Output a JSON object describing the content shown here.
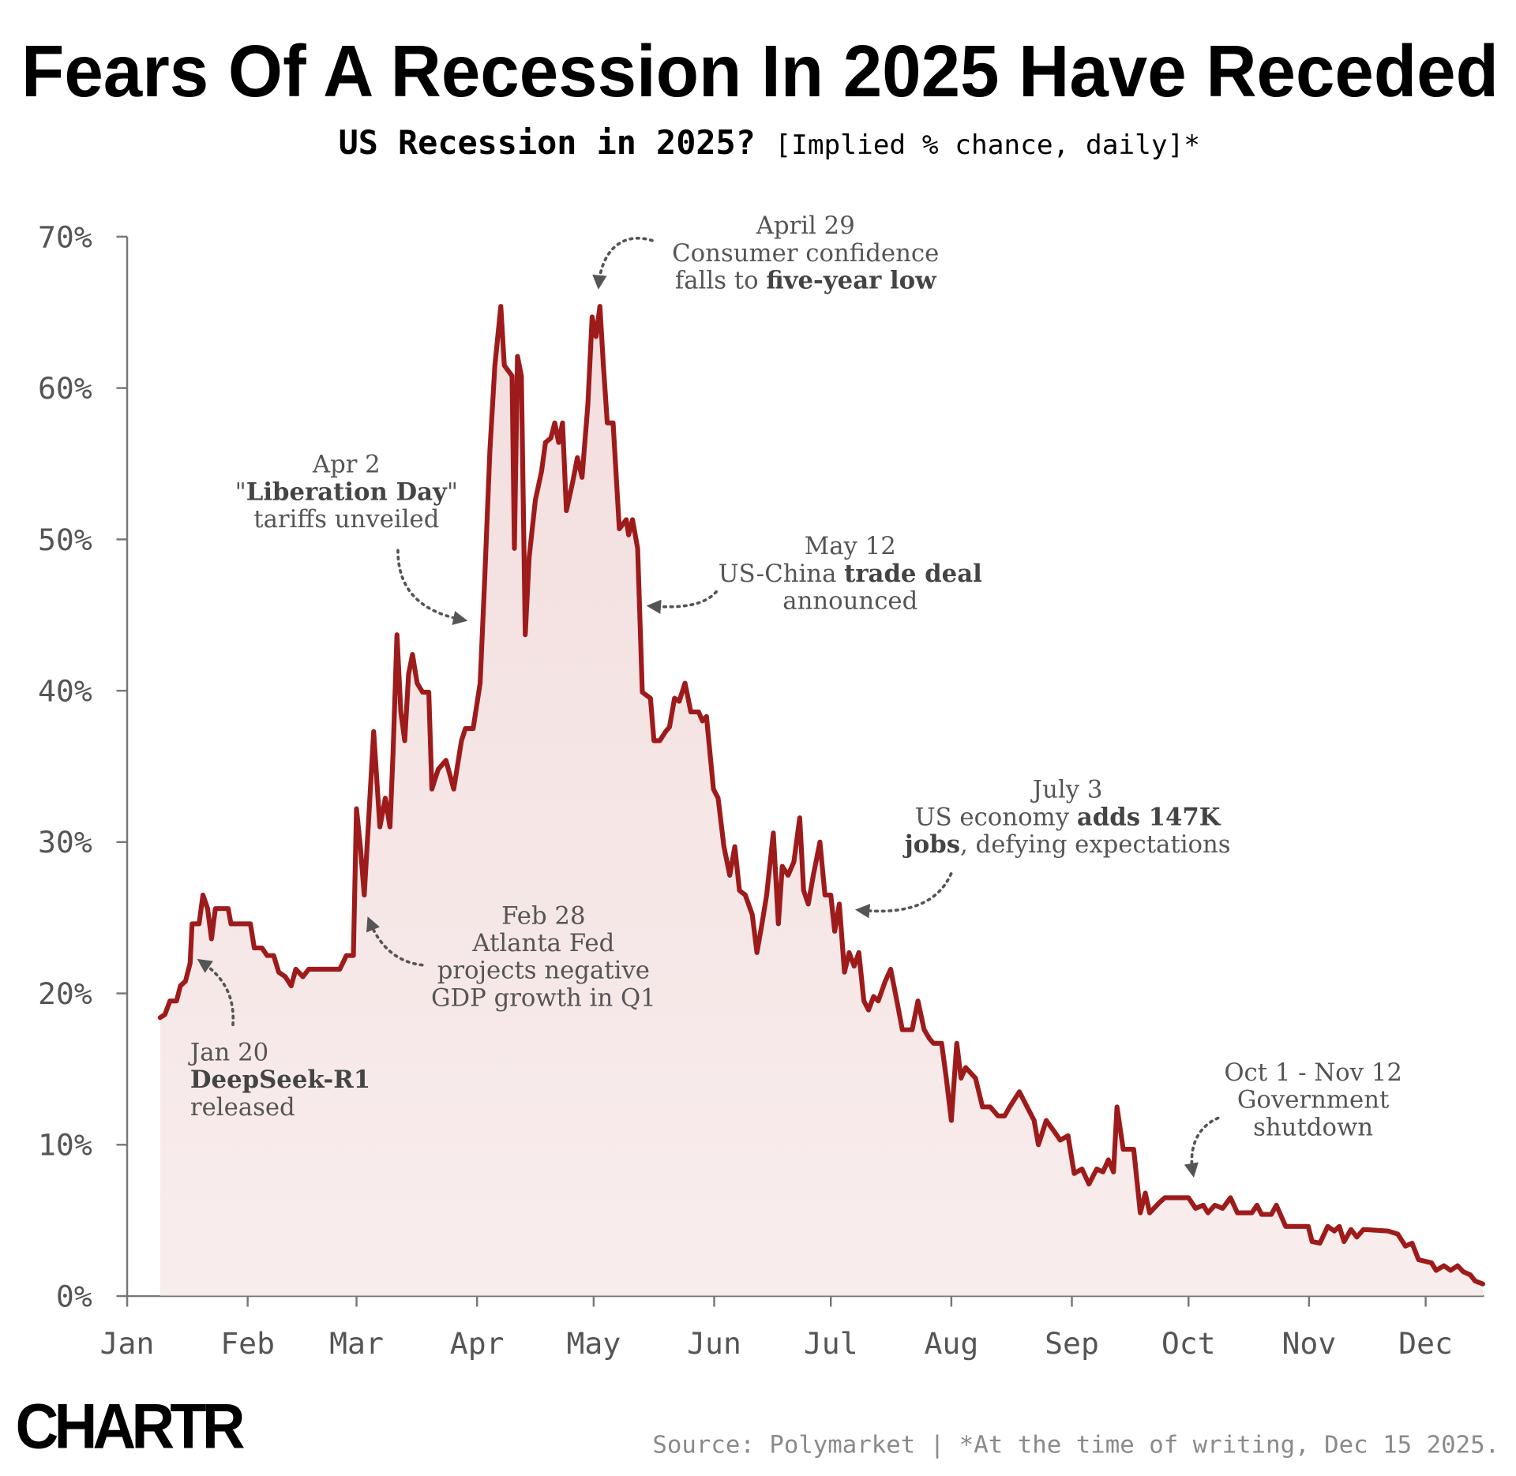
{
  "chart_data": {
    "type": "line",
    "title": "Fears Of A Recession In 2025 Have Receded",
    "subtitle": "US Recession in 2025?",
    "subtitle_note": "[Implied % chance, daily]*",
    "source": "Source: Polymarket | *At the time of writing, Dec 15 2025.",
    "logo": "CHARTR",
    "color": "#9e1b1b",
    "area_color": "#f3dede",
    "xlim": [
      0,
      349
    ],
    "ylim": [
      0,
      70
    ],
    "xticks": [
      {
        "value": 0,
        "label": "Jan"
      },
      {
        "value": 31,
        "label": "Feb"
      },
      {
        "value": 59,
        "label": "Mar"
      },
      {
        "value": 90,
        "label": "Apr"
      },
      {
        "value": 120,
        "label": "May"
      },
      {
        "value": 151,
        "label": "Jun"
      },
      {
        "value": 181,
        "label": "Jul"
      },
      {
        "value": 212,
        "label": "Aug"
      },
      {
        "value": 243,
        "label": "Sep"
      },
      {
        "value": 273,
        "label": "Oct"
      },
      {
        "value": 304,
        "label": "Nov"
      },
      {
        "value": 334,
        "label": "Dec"
      }
    ],
    "yticks": [
      {
        "value": 0,
        "label": "0%"
      },
      {
        "value": 10,
        "label": "10%"
      },
      {
        "value": 20,
        "label": "20%"
      },
      {
        "value": 30,
        "label": "30%"
      },
      {
        "value": 40,
        "label": "40%"
      },
      {
        "value": 50,
        "label": "50%"
      },
      {
        "value": 60,
        "label": "60%"
      },
      {
        "value": 70,
        "label": "70%"
      }
    ],
    "x": [
      8.5,
      9.7,
      11,
      12.7,
      13.7,
      15,
      16.2,
      16.7,
      18.5,
      19.5,
      20.7,
      21.7,
      22.7,
      26,
      26.7,
      31.7,
      32.7,
      34.7,
      36,
      37.7,
      39,
      40.7,
      42.2,
      43.4,
      45.2,
      46.7,
      54.7,
      56.4,
      58.2,
      59,
      60,
      61,
      62,
      63.4,
      65,
      66.4,
      67.6,
      68.4,
      69.4,
      70.4,
      71.4,
      72.4,
      73.4,
      74.6,
      76,
      77.6,
      78.4,
      80,
      82,
      84,
      86,
      87,
      89,
      90.8,
      92,
      93.3,
      94.6,
      96.1,
      97,
      99,
      99.6,
      100.4,
      101.4,
      102.4,
      103.4,
      105,
      106.6,
      107.6,
      109,
      110,
      111,
      112,
      113,
      114.6,
      115.8,
      117,
      118.5,
      119.6,
      120.6,
      121.6,
      122.5,
      123.5,
      125,
      126.6,
      128.4,
      129,
      130,
      131.3,
      132.5,
      134.6,
      135.5,
      137,
      138.5,
      139.5,
      140.8,
      142,
      143.5,
      145,
      147,
      148,
      149,
      150.8,
      152,
      153.5,
      155,
      156.3,
      157.5,
      159,
      160.8,
      162,
      163.3,
      164.5,
      166.2,
      167.5,
      168.5,
      170,
      171.5,
      173,
      174,
      175.2,
      176.5,
      178.2,
      179.5,
      181,
      182,
      183.2,
      184.5,
      185.7,
      187,
      188.2,
      189.5,
      190.7,
      192,
      193.2,
      195,
      196.4,
      198,
      199.4,
      201.9,
      203.4,
      205,
      206.4,
      207.4,
      209.5,
      210.7,
      212,
      213.4,
      214.5,
      215.7,
      218.2,
      220,
      222,
      224,
      225.7,
      227,
      229.5,
      231.5,
      233.3,
      234.4,
      236.4,
      238.4,
      240,
      242,
      243.6,
      245.6,
      247.4,
      249.4,
      251,
      252.4,
      253.7,
      254.6,
      256.2,
      258.9,
      260.6,
      261.9,
      263,
      265.6,
      266.9,
      273,
      274.8,
      276.8,
      278,
      279.8,
      281.8,
      283.8,
      285.6,
      289.3,
      290.6,
      291.8,
      294.3,
      295.6,
      298,
      301.8,
      303.8,
      304.8,
      306.8,
      308.8,
      310.5,
      311.8,
      313,
      314.8,
      316.3,
      318,
      324.3,
      326.8,
      328.8,
      330.5,
      332.2,
      335.5,
      336.7,
      338.7,
      340.4,
      342.2,
      343.7,
      345.5,
      346.7,
      348.7
    ],
    "values": [
      18.4,
      18.6,
      19.5,
      19.5,
      20.5,
      20.8,
      22,
      24.6,
      24.6,
      26.5,
      25.6,
      23.6,
      25.6,
      25.6,
      24.6,
      24.6,
      23,
      23,
      22.5,
      22.5,
      21.4,
      21.1,
      20.5,
      21.6,
      21.1,
      21.6,
      21.6,
      22.5,
      22.5,
      32.2,
      29.7,
      26.5,
      31,
      37.3,
      31,
      32.9,
      31,
      35.9,
      43.7,
      38.6,
      36.7,
      41.1,
      42.4,
      40.5,
      39.9,
      39.9,
      33.5,
      34.8,
      35.4,
      33.5,
      36.7,
      37.5,
      37.5,
      40.5,
      47.5,
      55.8,
      61.5,
      65.4,
      61.5,
      60.8,
      49.4,
      62.1,
      60.8,
      43.7,
      48.8,
      52.6,
      54.5,
      56.4,
      56.7,
      57.7,
      56.4,
      57.7,
      51.9,
      53.8,
      55.4,
      54.1,
      58.9,
      64.7,
      63.4,
      65.4,
      61.5,
      57.7,
      57.7,
      50.7,
      51.3,
      50.3,
      51.3,
      49.4,
      39.9,
      39.5,
      36.7,
      36.7,
      37.3,
      37.6,
      39.5,
      39.3,
      40.5,
      38.6,
      38.6,
      38,
      38.3,
      33.5,
      32.9,
      29.7,
      27.8,
      29.7,
      26.8,
      26.5,
      25.2,
      22.7,
      24.6,
      26.5,
      30.6,
      24.6,
      28.4,
      27.8,
      28.7,
      31.6,
      26.8,
      25.9,
      27.8,
      30,
      26.5,
      26.5,
      24.1,
      25.9,
      21.4,
      22.7,
      21.8,
      22.7,
      19.5,
      18.9,
      19.8,
      19.5,
      20.8,
      21.6,
      19.5,
      17.6,
      17.6,
      19.5,
      17.6,
      17,
      16.7,
      16.7,
      14.4,
      11.6,
      16.7,
      14.4,
      15.1,
      14.4,
      12.5,
      12.5,
      11.9,
      11.9,
      12.5,
      13.5,
      12.5,
      11.6,
      10,
      11.6,
      10.9,
      10.3,
      10.6,
      8.1,
      8.4,
      7.4,
      8.4,
      8.2,
      9,
      8.2,
      12.5,
      9.7,
      9.7,
      5.5,
      6.8,
      5.5,
      6.2,
      6.5,
      6.5,
      5.8,
      6,
      5.5,
      6,
      5.8,
      6.5,
      5.5,
      5.5,
      6,
      5.4,
      5.4,
      6,
      4.6,
      4.6,
      4.6,
      3.6,
      3.5,
      4.6,
      4.3,
      4.6,
      3.6,
      4.4,
      3.9,
      4.4,
      4.3,
      4.1,
      3.3,
      3.5,
      2.4,
      2.2,
      1.7,
      2,
      1.7,
      2,
      1.6,
      1.4,
      1,
      0.8
    ],
    "annotations": [
      {
        "lines": [
          [
            {
              "text": "Jan 20"
            }
          ],
          [
            {
              "text": "DeepSeek-R1",
              "bold": true
            }
          ],
          [
            {
              "text": "released"
            }
          ]
        ]
      },
      {
        "lines": [
          [
            {
              "text": "Feb 28"
            }
          ],
          [
            {
              "text": "Atlanta Fed"
            }
          ],
          [
            {
              "text": "projects negative"
            }
          ],
          [
            {
              "text": "GDP growth in Q1"
            }
          ]
        ]
      },
      {
        "lines": [
          [
            {
              "text": "Apr 2"
            }
          ],
          [
            {
              "text": "\""
            },
            {
              "text": "Liberation Day",
              "bold": true
            },
            {
              "text": "\""
            }
          ],
          [
            {
              "text": "tariffs unveiled"
            }
          ]
        ]
      },
      {
        "lines": [
          [
            {
              "text": "April 29"
            }
          ],
          [
            {
              "text": "Consumer confidence"
            }
          ],
          [
            {
              "text": "falls to "
            },
            {
              "text": "five-year low",
              "bold": true
            }
          ]
        ]
      },
      {
        "lines": [
          [
            {
              "text": "May 12"
            }
          ],
          [
            {
              "text": "US-China "
            },
            {
              "text": "trade deal",
              "bold": true
            }
          ],
          [
            {
              "text": "announced"
            }
          ]
        ]
      },
      {
        "lines": [
          [
            {
              "text": "July 3"
            }
          ],
          [
            {
              "text": "US economy "
            },
            {
              "text": "adds 147K",
              "bold": true
            }
          ],
          [
            {
              "text": "jobs",
              "bold": true
            },
            {
              "text": ", defying expectations"
            }
          ]
        ]
      },
      {
        "lines": [
          [
            {
              "text": "Oct 1 - Nov 12"
            }
          ],
          [
            {
              "text": "Government"
            }
          ],
          [
            {
              "text": "shutdown"
            }
          ]
        ]
      }
    ]
  }
}
